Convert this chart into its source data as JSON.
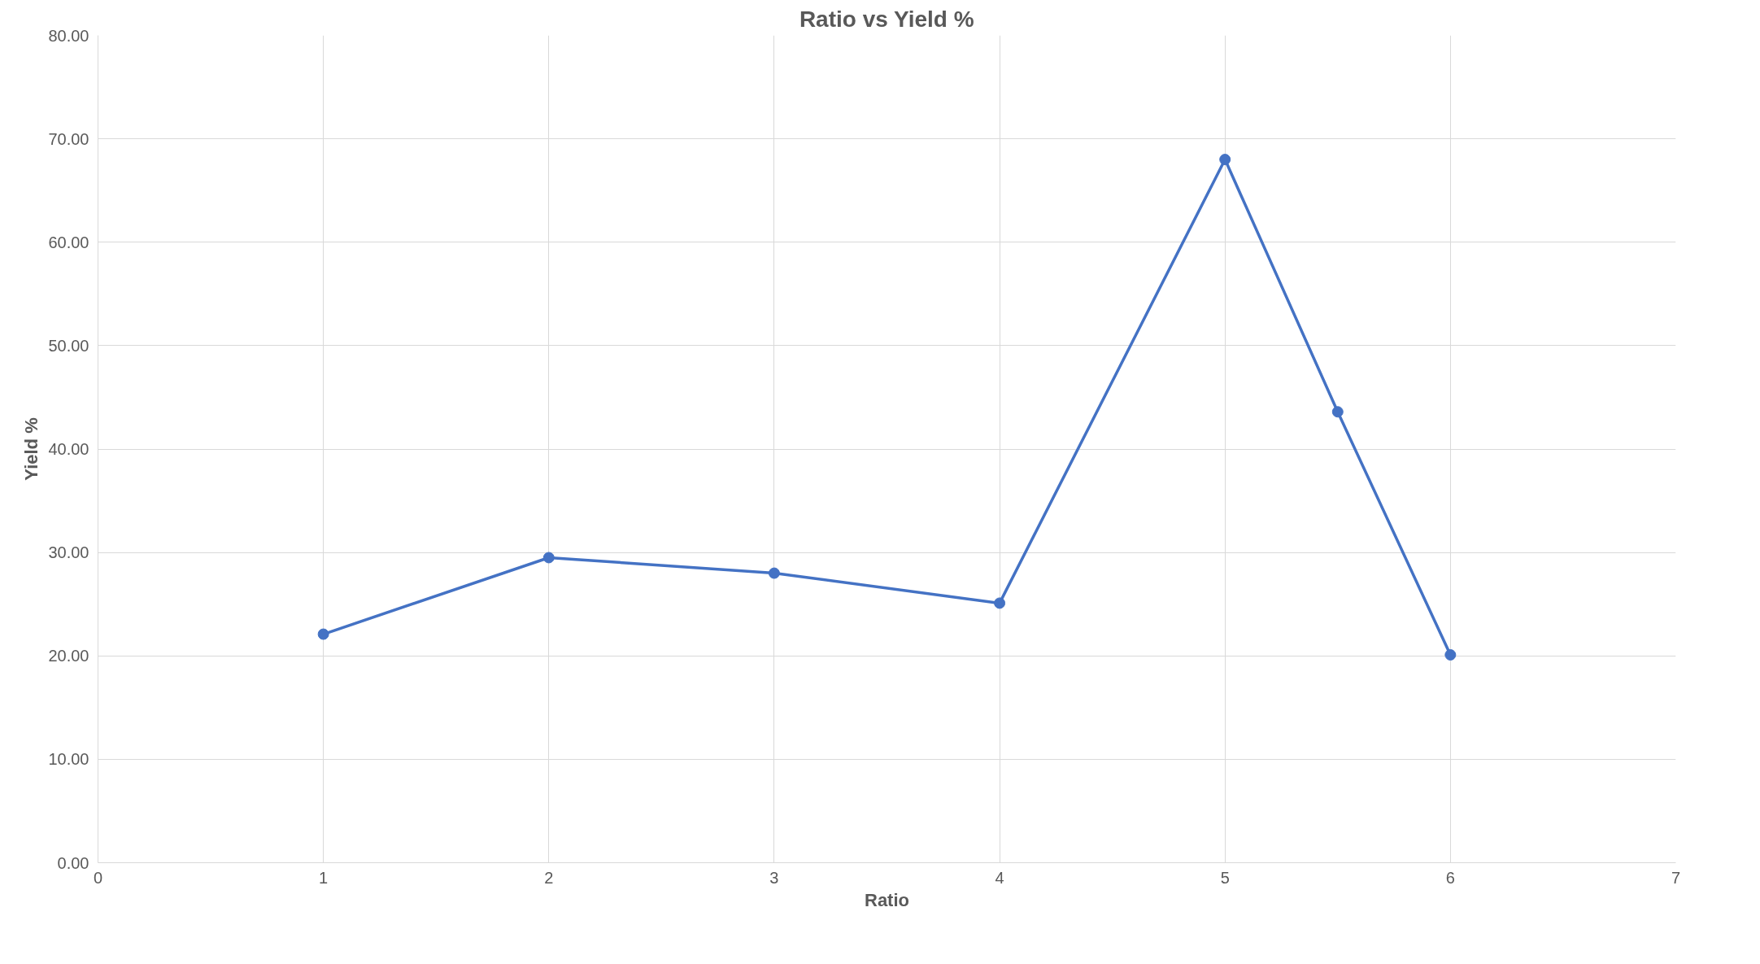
{
  "chart_data": {
    "type": "line",
    "title": "Ratio vs Yield %",
    "xlabel": "Ratio",
    "ylabel": "Yield %",
    "x": [
      1,
      2,
      3,
      4,
      5,
      5.5,
      6
    ],
    "series": [
      {
        "color": "#4472c4",
        "values": [
          22.1,
          29.5,
          28.0,
          25.1,
          68.0,
          43.6,
          20.1
        ]
      }
    ],
    "xlim": [
      0,
      7
    ],
    "xticks": [
      0,
      1,
      2,
      3,
      4,
      5,
      6,
      7
    ],
    "ylim": [
      0,
      80
    ],
    "yticks": [
      {
        "value": 0,
        "label": "0.00"
      },
      {
        "value": 10,
        "label": "10.00"
      },
      {
        "value": 20,
        "label": "20.00"
      },
      {
        "value": 30,
        "label": "30.00"
      },
      {
        "value": 40,
        "label": "40.00"
      },
      {
        "value": 50,
        "label": "50.00"
      },
      {
        "value": 60,
        "label": "60.00"
      },
      {
        "value": 70,
        "label": "70.00"
      },
      {
        "value": 80,
        "label": "80.00"
      }
    ],
    "grid": true,
    "marker": "circle",
    "line_style": "solid"
  }
}
